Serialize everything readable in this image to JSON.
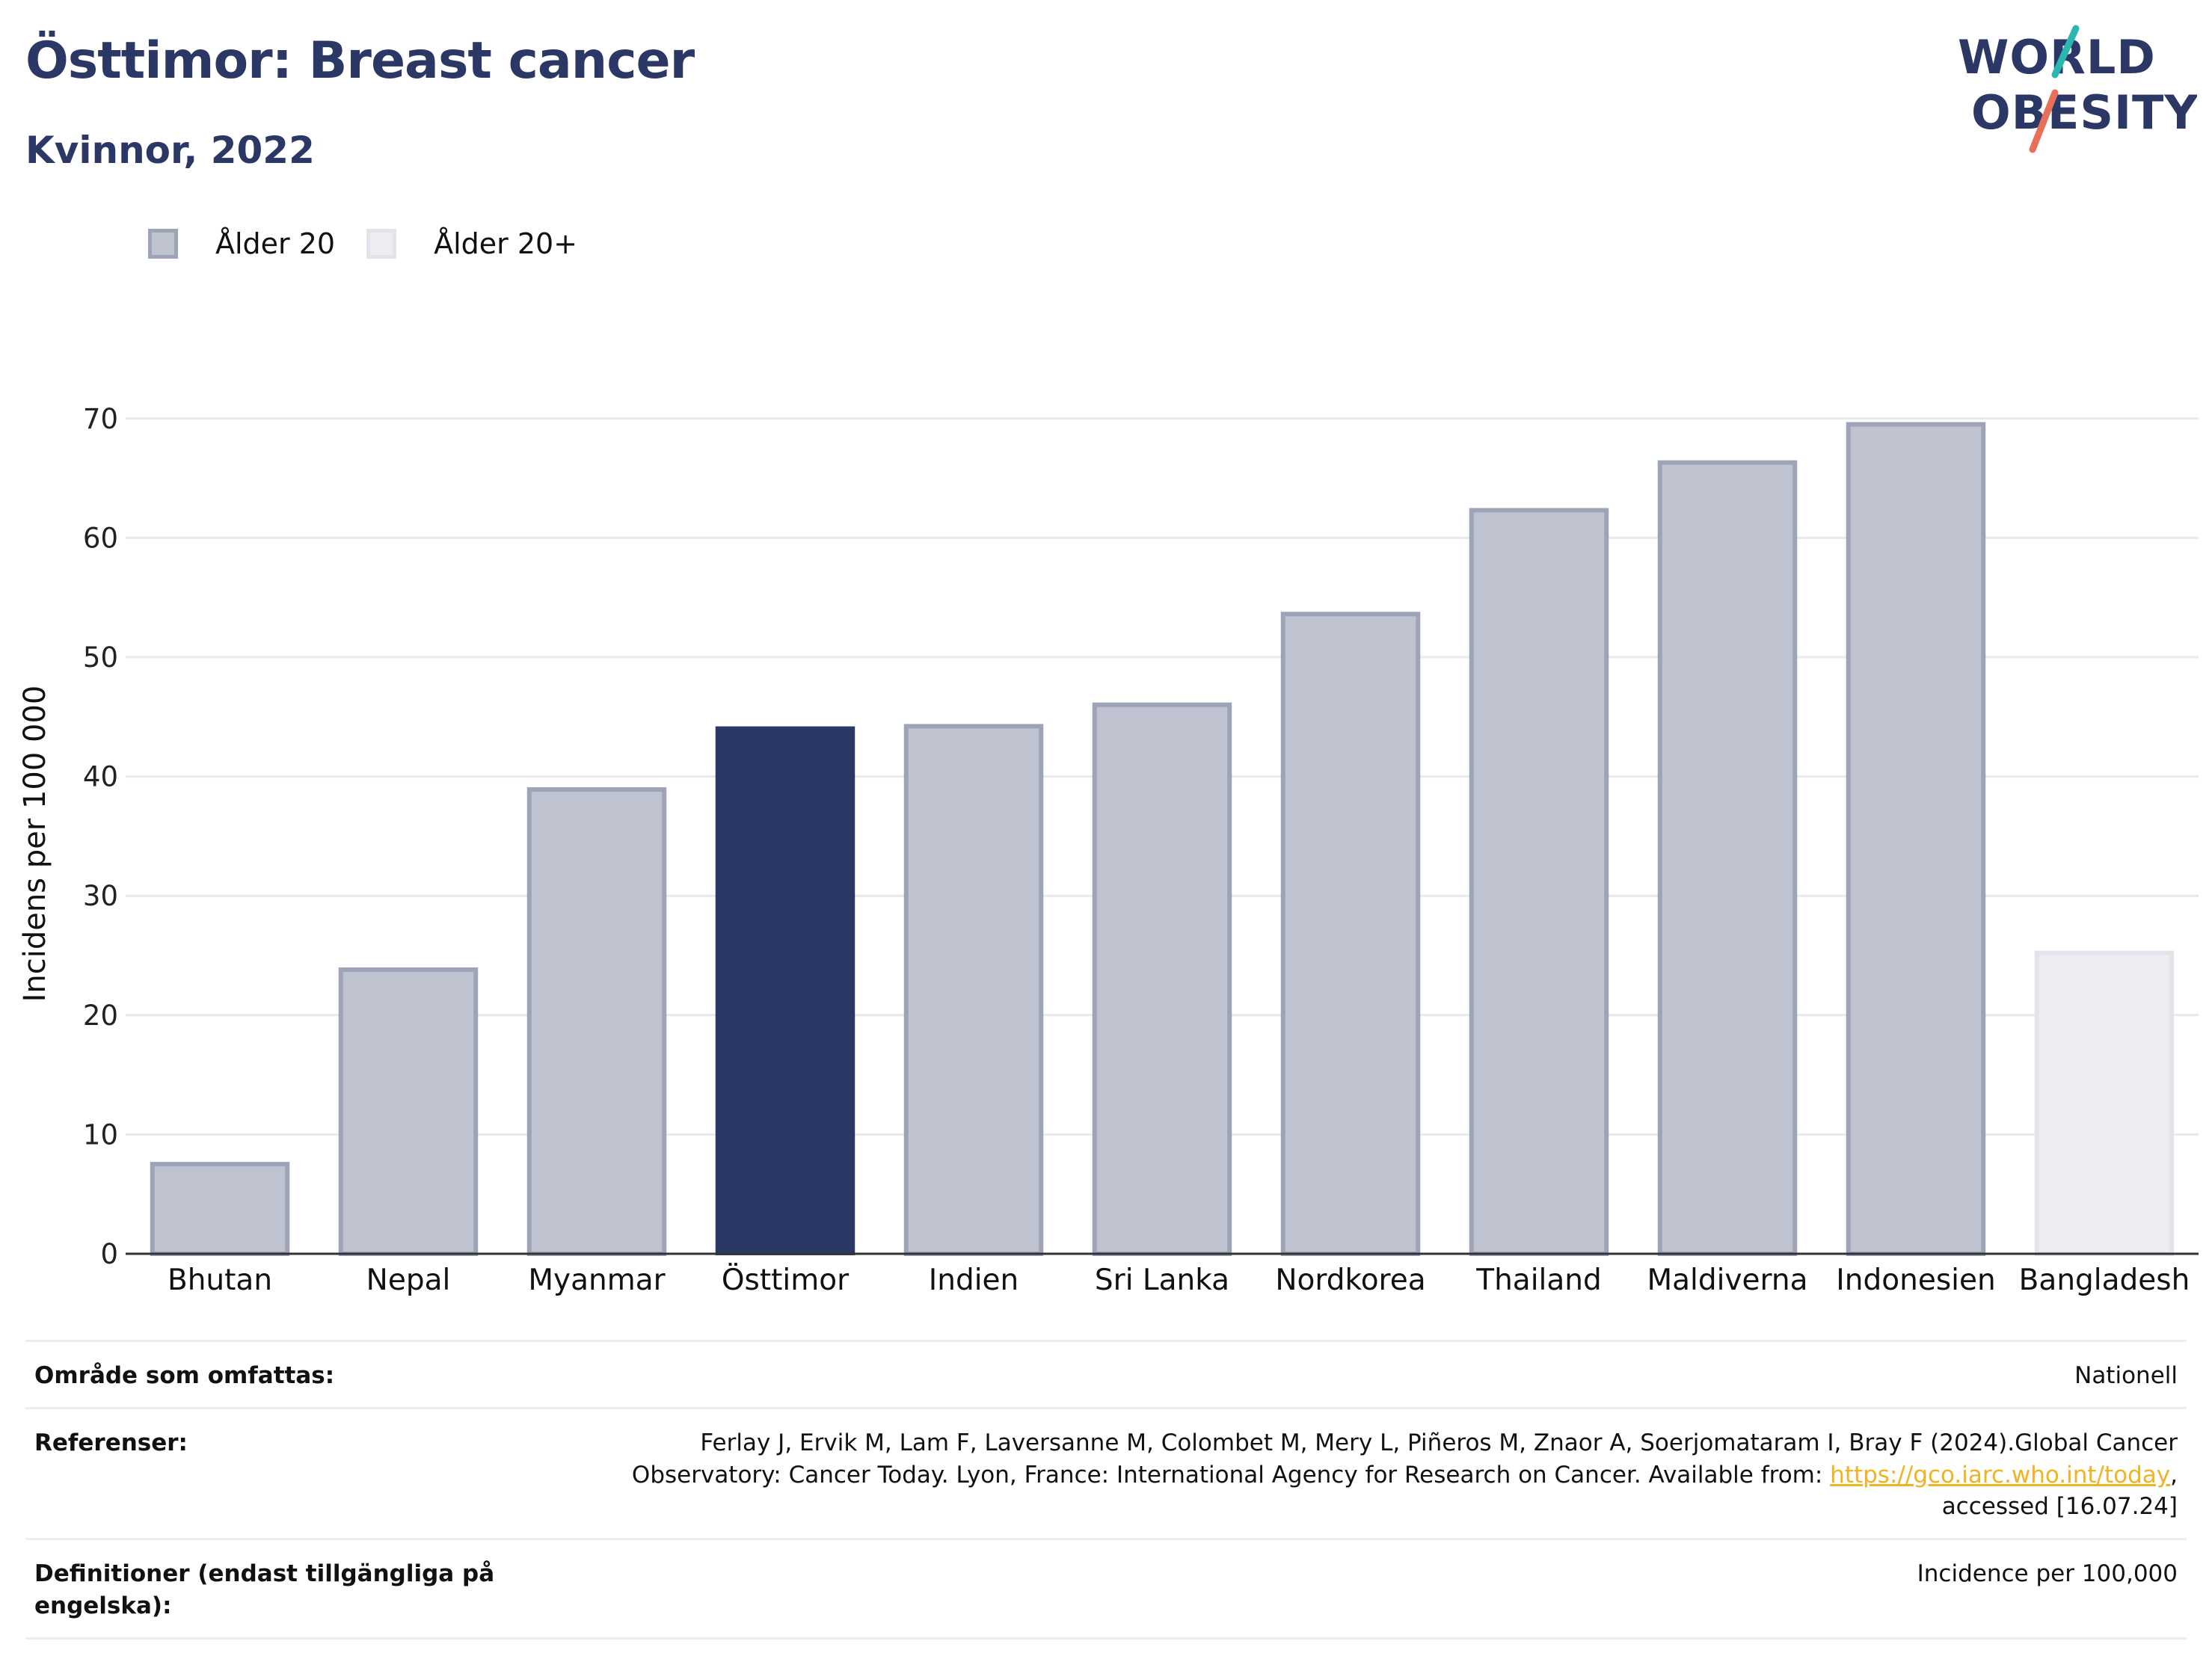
{
  "header": {
    "title": "Östtimor: Breast cancer",
    "subtitle": "Kvinnor, 2022"
  },
  "logo": {
    "line1": "WORLD",
    "line2": "OBESITY"
  },
  "colors": {
    "highlight": "#2b3865",
    "age20_fill": "#bfc3d0",
    "age20_border": "#9ea4b8",
    "age20plus_fill": "#eceef2",
    "age20plus_border": "#e2e4ea",
    "grid": "#e8e9ee",
    "logo_teal": "#2ab7b0",
    "logo_coral": "#e8705a",
    "link": "#f0b323"
  },
  "legend": {
    "items": [
      {
        "label": "Ålder 20",
        "color_key": "age20"
      },
      {
        "label": "Ålder 20+",
        "color_key": "age20plus"
      }
    ]
  },
  "chart_data": {
    "type": "bar",
    "title": "Östtimor: Breast cancer",
    "subtitle": "Kvinnor, 2022",
    "ylabel": "Incidens per 100 000",
    "xlabel": "",
    "ylim": [
      0,
      75
    ],
    "yticks": [
      0,
      10,
      20,
      30,
      40,
      50,
      60,
      70
    ],
    "grid": true,
    "legend_position": "top-left",
    "categories": [
      "Bhutan",
      "Nepal",
      "Myanmar",
      "Östtimor",
      "Indien",
      "Sri Lanka",
      "Nordkorea",
      "Thailand",
      "Maldiverna",
      "Indonesien",
      "Bangladesh"
    ],
    "values": [
      7.7,
      24.0,
      39.1,
      44.2,
      44.4,
      46.2,
      53.8,
      62.5,
      66.5,
      69.7,
      25.4
    ],
    "groups": [
      "Ålder 20",
      "Ålder 20",
      "Ålder 20",
      "Ålder 20",
      "Ålder 20",
      "Ålder 20",
      "Ålder 20",
      "Ålder 20",
      "Ålder 20",
      "Ålder 20",
      "Ålder 20+"
    ],
    "highlight": "Östtimor"
  },
  "info": {
    "rows": [
      {
        "label": "Område som omfattas:",
        "value": "Nationell"
      },
      {
        "label": "Referenser:",
        "value_line1": "Ferlay J, Ervik M, Lam F, Laversanne M, Colombet M, Mery L, Piñeros M, Znaor A, Soerjomataram I, Bray F (2024).Global Cancer",
        "value_line2_pre": "Observatory: Cancer Today. Lyon, France: International Agency for Research on Cancer. Available from: ",
        "link_text": "https://gco.iarc.who.int/today",
        "value_line2_post": ",",
        "value_line3": "accessed [16.07.24]"
      },
      {
        "label": "Definitioner (endast tillgängliga på engelska):",
        "value": "Incidence per 100,000"
      }
    ]
  }
}
